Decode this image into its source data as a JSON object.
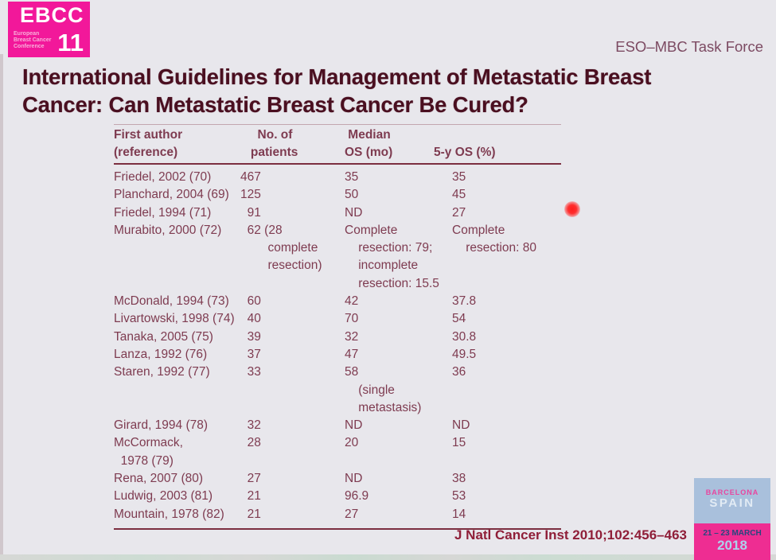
{
  "logo": {
    "acronym": "EBCC",
    "number": "11",
    "subtitle_lines": [
      "European",
      "Breast Cancer",
      "Conference"
    ]
  },
  "header": {
    "task_force": "ESO–MBC Task Force"
  },
  "title": {
    "line1": "International Guidelines for Management of Metastatic Breast",
    "line2": "Cancer: Can Metastatic Breast Cancer Be Cured?"
  },
  "table": {
    "headers": {
      "author": "First author\n(reference)",
      "patients": "     No. of\n   patients",
      "median": " Median\nOS (mo)",
      "os5": "\n5-y OS (%)"
    },
    "rows": [
      {
        "author": "Friedel, 2002 (70)",
        "patients": "467",
        "median": "35",
        "os5": "35"
      },
      {
        "author": "Planchard, 2004 (69)",
        "patients": "125",
        "median": "50",
        "os5": "45"
      },
      {
        "author": "Friedel, 1994 (71)",
        "patients": "  91",
        "median": "ND",
        "os5": "27"
      },
      {
        "author": "Murabito, 2000 (72)",
        "patients": "  62 (28\n        complete\n        resection)",
        "median": "Complete\n    resection: 79;\n    incomplete\n    resection: 15.5",
        "os5": "Complete\n    resection: 80"
      },
      {
        "author": "McDonald, 1994 (73)",
        "patients": "  60",
        "median": "42",
        "os5": "37.8"
      },
      {
        "author": "Livartowski, 1998 (74)",
        "patients": "  40",
        "median": "70",
        "os5": "54"
      },
      {
        "author": "Tanaka, 2005 (75)",
        "patients": "  39",
        "median": "32",
        "os5": "30.8"
      },
      {
        "author": "Lanza, 1992 (76)",
        "patients": "  37",
        "median": "47",
        "os5": "49.5"
      },
      {
        "author": "Staren, 1992 (77)",
        "patients": "  33",
        "median": "58\n    (single\n    metastasis)",
        "os5": "36"
      },
      {
        "author": "Girard, 1994 (78)",
        "patients": "  32",
        "median": "ND",
        "os5": "ND"
      },
      {
        "author": "McCormack,\n  1978 (79)",
        "patients": "  28",
        "median": "20",
        "os5": "15"
      },
      {
        "author": "Rena, 2007 (80)",
        "patients": "  27",
        "median": "ND",
        "os5": "38"
      },
      {
        "author": "Ludwig, 2003 (81)",
        "patients": "  21",
        "median": "96.9",
        "os5": "53"
      },
      {
        "author": "Mountain, 1978 (82)",
        "patients": "  21",
        "median": "27",
        "os5": "14"
      }
    ]
  },
  "footer": {
    "citation": "J Natl Cancer Inst 2010;102:456–463"
  },
  "badge": {
    "city": "BARCELONA",
    "country": "SPAIN",
    "dates": "21 – 23 MARCH",
    "year": "2018"
  },
  "colors": {
    "background": "#e8e7ec",
    "logo_pink": "#f2189a",
    "title_maroon": "#4a0f20",
    "table_maroon": "#7e3b50",
    "citation_red": "#8f1e38",
    "badge_blue": "#a9c0dc",
    "badge_pink": "#ee2d92",
    "laser_red": "#ff1d1d"
  }
}
